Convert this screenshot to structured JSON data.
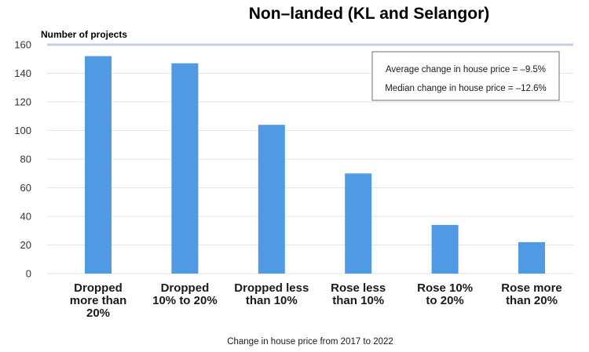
{
  "chart_data": {
    "type": "bar",
    "title": "Non–landed (KL and Selangor)",
    "ylabel": "Number of projects",
    "xlabel": "Change in house price from 2017 to 2022",
    "ylim": [
      0,
      160
    ],
    "yticks": [
      0,
      20,
      40,
      60,
      80,
      100,
      120,
      140,
      160
    ],
    "categories": [
      [
        "Dropped",
        "more than",
        "20%"
      ],
      [
        "Dropped",
        "10% to 20%"
      ],
      [
        "Dropped less",
        "than 10%"
      ],
      [
        "Rose less",
        "than 10%"
      ],
      [
        "Rose 10%",
        "to 20%"
      ],
      [
        "Rose more",
        "than 20%"
      ]
    ],
    "values": [
      152,
      147,
      104,
      70,
      34,
      22
    ],
    "bar_color": "#4f9ae3",
    "annotations": [
      "Average change in house price = –9.5%",
      "Median change in house price = –12.6%"
    ]
  }
}
